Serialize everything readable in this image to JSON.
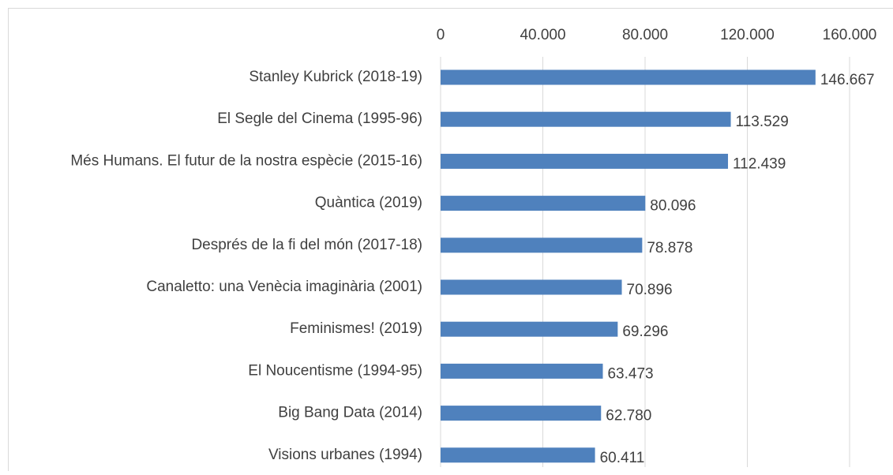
{
  "chart_data": {
    "type": "bar",
    "orientation": "horizontal",
    "categories": [
      "Stanley Kubrick (2018-19)",
      "El Segle del Cinema (1995-96)",
      "Més Humans. El futur de la nostra espècie (2015-16)",
      "Quàntica (2019)",
      "Després de la fi del món (2017-18)",
      "Canaletto: una Venècia imaginària (2001)",
      "Feminismes! (2019)",
      "El Noucentisme (1994-95)",
      "Big Bang Data (2014)",
      "Visions urbanes (1994)"
    ],
    "values": [
      146667,
      113529,
      112439,
      80096,
      78878,
      70896,
      69296,
      63473,
      62780,
      60411
    ],
    "value_labels": [
      "146.667",
      "113.529",
      "112.439",
      "80.096",
      "78.878",
      "70.896",
      "69.296",
      "63.473",
      "62.780",
      "60.411"
    ],
    "color": "#4f81bd",
    "xlim": [
      0,
      160000
    ],
    "xticks": [
      0,
      {
        "value": 40000,
        "label": "40.000"
      },
      {
        "value": 80000,
        "label": "80.000"
      },
      {
        "value": 120000,
        "label": "120.000"
      },
      {
        "value": 160000,
        "label": "160.000"
      }
    ],
    "grid": true
  }
}
